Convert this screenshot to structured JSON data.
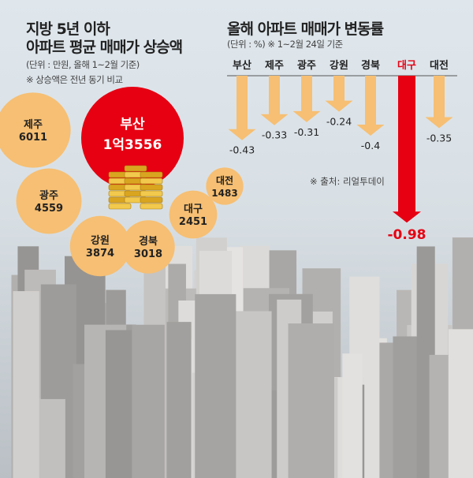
{
  "left": {
    "title_line1": "지방 5년 이하",
    "title_line2": "아파트 평균 매매가 상승액",
    "unit": "(단위 : 만원, 올해 1~2월 기준)",
    "note": "※ 상승액은 전년 동기 비교"
  },
  "right": {
    "title": "올해 아파트 매매가 변동률",
    "unit": "(단위 : %)  ※ 1~2월 24일 기준",
    "source": "※ 출처: 리얼투데이"
  },
  "colors": {
    "orange": "#f6bf73",
    "red": "#e60012",
    "text": "#222222"
  },
  "chart_data": [
    {
      "type": "bubble",
      "title": "지방 5년 이하 아파트 평균 매매가 상승액",
      "unit": "만원",
      "categories": [
        "제주",
        "부산",
        "광주",
        "강원",
        "경북",
        "대구",
        "대전"
      ],
      "labels": [
        "6011",
        "1억3556",
        "4559",
        "3874",
        "3018",
        "2451",
        "1483"
      ],
      "values": [
        6011,
        13556,
        4559,
        3874,
        3018,
        2451,
        1483
      ],
      "highlight": "부산"
    },
    {
      "type": "bar",
      "title": "올해 아파트 매매가 변동률",
      "unit": "%",
      "categories": [
        "부산",
        "제주",
        "광주",
        "강원",
        "경북",
        "대구",
        "대전"
      ],
      "values": [
        -0.43,
        -0.33,
        -0.31,
        -0.24,
        -0.4,
        -0.98,
        -0.35
      ],
      "labels": [
        "-0.43",
        "-0.33",
        "-0.31",
        "-0.24",
        "-0.4",
        "-0.98",
        "-0.35"
      ],
      "highlight": "대구",
      "ylim": [
        -1.0,
        0
      ]
    }
  ]
}
